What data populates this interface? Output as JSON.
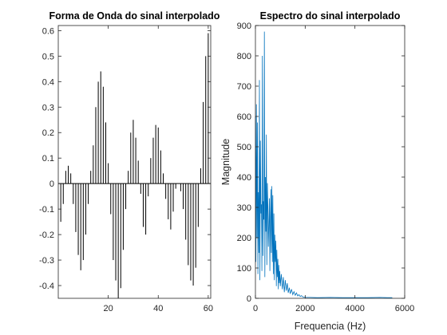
{
  "chart_data": [
    {
      "type": "bar",
      "title": "Forma de Onda do sinal interpolado",
      "xlabel": "",
      "ylabel": "",
      "xlim": [
        0,
        61
      ],
      "ylim": [
        -0.45,
        0.62
      ],
      "xticks": [
        20,
        40,
        60
      ],
      "yticks": [
        -0.4,
        -0.3,
        -0.2,
        -0.1,
        0,
        0.1,
        0.2,
        0.3,
        0.4,
        0.5,
        0.6
      ],
      "ytick_labels": [
        "-0.4",
        "-0.3",
        "-0.2",
        "-0.1",
        "0",
        "0.1",
        "0.2",
        "0.3",
        "0.4",
        "0.5",
        "0.6"
      ],
      "grid": false,
      "bar_color": "#000000",
      "x": [
        1,
        2,
        3,
        4,
        5,
        6,
        7,
        8,
        9,
        10,
        11,
        12,
        13,
        14,
        15,
        16,
        17,
        18,
        19,
        20,
        21,
        22,
        23,
        24,
        25,
        26,
        27,
        28,
        29,
        30,
        31,
        32,
        33,
        34,
        35,
        36,
        37,
        38,
        39,
        40,
        41,
        42,
        43,
        44,
        45,
        46,
        47,
        48,
        49,
        50,
        51,
        52,
        53,
        54,
        55,
        56,
        57,
        58,
        59,
        60
      ],
      "values": [
        -0.15,
        -0.08,
        0.05,
        0.07,
        0.04,
        -0.08,
        -0.19,
        -0.28,
        -0.34,
        -0.3,
        -0.2,
        -0.08,
        0.05,
        0.15,
        0.3,
        0.4,
        0.44,
        0.38,
        0.24,
        0.08,
        -0.12,
        -0.3,
        -0.38,
        -0.45,
        -0.41,
        -0.26,
        -0.1,
        0.05,
        0.2,
        0.25,
        0.18,
        0.09,
        -0.04,
        -0.17,
        -0.2,
        -0.05,
        0.1,
        0.18,
        0.23,
        0.22,
        0.13,
        0.04,
        -0.06,
        -0.14,
        -0.18,
        -0.11,
        -0.02,
        0.0,
        -0.03,
        -0.1,
        -0.22,
        -0.32,
        -0.38,
        -0.4,
        -0.33,
        -0.17,
        0.06,
        0.32,
        0.5,
        0.59
      ]
    },
    {
      "type": "line",
      "title": "Espectro do sinal interpolado",
      "xlabel": "Frequencia (Hz)",
      "ylabel": "Magnitude",
      "xlim": [
        0,
        6000
      ],
      "ylim": [
        0,
        900
      ],
      "xticks": [
        0,
        2000,
        4000,
        6000
      ],
      "yticks": [
        0,
        100,
        200,
        300,
        400,
        500,
        600,
        700,
        800,
        900
      ],
      "grid": false,
      "line_color": "#0072BD",
      "series": [
        {
          "x": [
            0,
            20,
            40,
            60,
            80,
            100,
            120,
            140,
            160,
            180,
            200,
            220,
            240,
            260,
            280,
            300,
            320,
            340,
            360,
            380,
            400,
            420,
            440,
            460,
            480,
            500,
            520,
            540,
            560,
            580,
            600,
            620,
            640,
            660,
            680,
            700,
            720,
            740,
            760,
            780,
            800,
            820,
            840,
            860,
            880,
            900,
            920,
            940,
            960,
            980,
            1000,
            1040,
            1080,
            1120,
            1160,
            1200,
            1240,
            1280,
            1320,
            1360,
            1400,
            1450,
            1500,
            1550,
            1600,
            1650,
            1700,
            1750,
            1800,
            1850,
            1900,
            1950,
            2000,
            2200,
            2500,
            3000,
            3500,
            4000,
            4500,
            5000,
            5300,
            5500
          ],
          "y": [
            600,
            120,
            640,
            200,
            580,
            80,
            350,
            150,
            720,
            60,
            520,
            280,
            310,
            90,
            800,
            140,
            320,
            260,
            880,
            70,
            400,
            220,
            540,
            110,
            380,
            300,
            170,
            240,
            330,
            90,
            260,
            360,
            150,
            370,
            120,
            340,
            80,
            280,
            60,
            210,
            120,
            190,
            40,
            160,
            70,
            130,
            30,
            110,
            50,
            90,
            40,
            80,
            30,
            70,
            20,
            60,
            25,
            50,
            18,
            35,
            15,
            30,
            12,
            22,
            10,
            18,
            8,
            12,
            6,
            9,
            5,
            4,
            3,
            3,
            2,
            3,
            2,
            2,
            2,
            3,
            2,
            2
          ]
        }
      ]
    }
  ]
}
